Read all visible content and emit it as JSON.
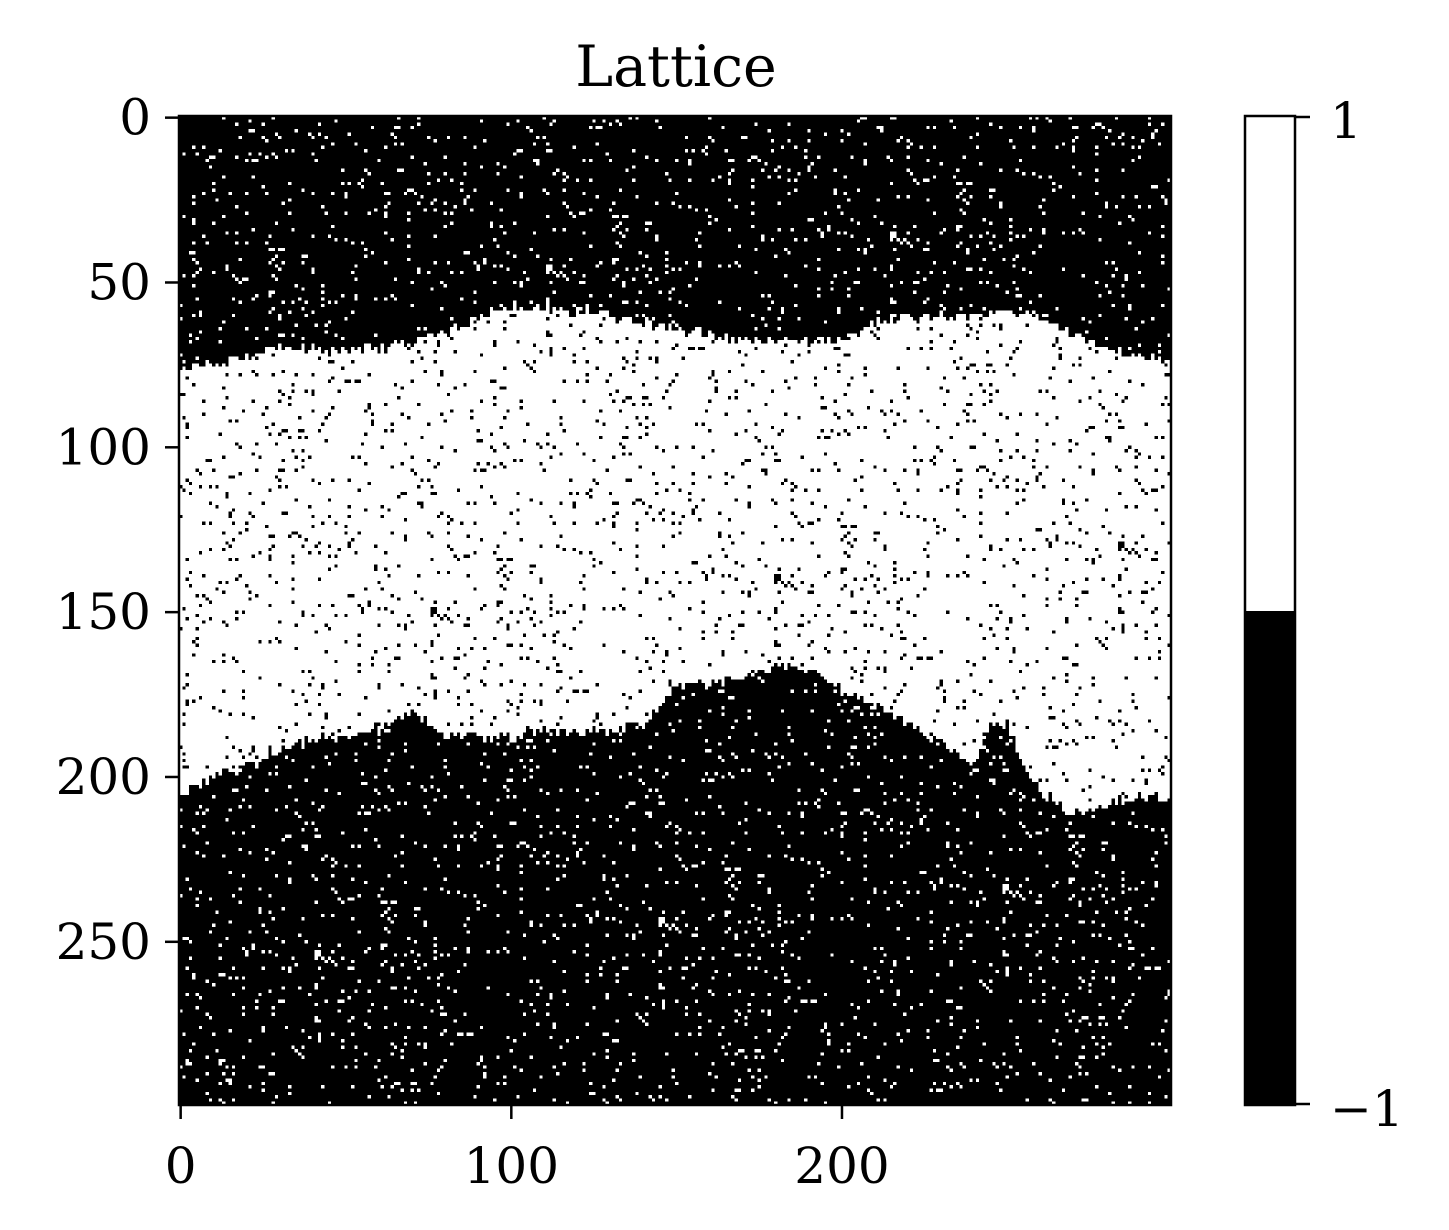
{
  "chart_data": {
    "type": "heatmap",
    "title": "Lattice",
    "grid_size": [
      300,
      300
    ],
    "xlim": [
      0,
      299
    ],
    "ylim": [
      299,
      0
    ],
    "x_ticks": [
      0,
      100,
      200
    ],
    "x_tick_labels": [
      "0",
      "100",
      "200"
    ],
    "y_ticks": [
      0,
      50,
      100,
      150,
      200,
      250
    ],
    "y_tick_labels": [
      "0",
      "50",
      "100",
      "150",
      "200",
      "250"
    ],
    "values": [
      -1,
      1
    ],
    "colormap": {
      "-1": "#000000",
      "1": "#ffffff"
    },
    "domains": [
      {
        "value": -1,
        "rows": [
          0,
          60
        ],
        "description": "spin-down domain with sparse flipped sites"
      },
      {
        "value": 1,
        "rows": [
          60,
          210
        ],
        "description": "spin-up band with rough boundaries and sparse flipped sites"
      },
      {
        "value": -1,
        "rows": [
          190,
          299
        ],
        "description": "spin-down domain with sparse flipped sites"
      }
    ],
    "top_boundary_profile": [
      [
        0,
        76
      ],
      [
        10,
        74
      ],
      [
        20,
        72
      ],
      [
        30,
        70
      ],
      [
        40,
        70
      ],
      [
        50,
        70
      ],
      [
        60,
        70
      ],
      [
        70,
        68
      ],
      [
        80,
        66
      ],
      [
        90,
        60
      ],
      [
        100,
        58
      ],
      [
        110,
        58
      ],
      [
        120,
        58
      ],
      [
        130,
        60
      ],
      [
        140,
        62
      ],
      [
        150,
        64
      ],
      [
        160,
        66
      ],
      [
        170,
        68
      ],
      [
        180,
        68
      ],
      [
        190,
        68
      ],
      [
        200,
        68
      ],
      [
        210,
        62
      ],
      [
        220,
        60
      ],
      [
        230,
        60
      ],
      [
        240,
        60
      ],
      [
        250,
        58
      ],
      [
        260,
        60
      ],
      [
        270,
        66
      ],
      [
        280,
        70
      ],
      [
        290,
        72
      ],
      [
        299,
        74
      ]
    ],
    "bottom_boundary_profile": [
      [
        0,
        206
      ],
      [
        10,
        200
      ],
      [
        20,
        196
      ],
      [
        30,
        192
      ],
      [
        40,
        188
      ],
      [
        50,
        188
      ],
      [
        60,
        186
      ],
      [
        70,
        180
      ],
      [
        80,
        188
      ],
      [
        90,
        188
      ],
      [
        100,
        188
      ],
      [
        110,
        186
      ],
      [
        120,
        186
      ],
      [
        130,
        186
      ],
      [
        140,
        184
      ],
      [
        150,
        172
      ],
      [
        160,
        172
      ],
      [
        170,
        170
      ],
      [
        180,
        166
      ],
      [
        190,
        168
      ],
      [
        200,
        174
      ],
      [
        210,
        178
      ],
      [
        220,
        184
      ],
      [
        230,
        190
      ],
      [
        240,
        196
      ],
      [
        245,
        184
      ],
      [
        250,
        184
      ],
      [
        255,
        196
      ],
      [
        260,
        204
      ],
      [
        270,
        212
      ],
      [
        280,
        208
      ],
      [
        290,
        206
      ],
      [
        299,
        206
      ]
    ],
    "colorbar": {
      "ticks": [
        1,
        -1
      ],
      "tick_labels": [
        "1",
        "−1"
      ]
    }
  }
}
